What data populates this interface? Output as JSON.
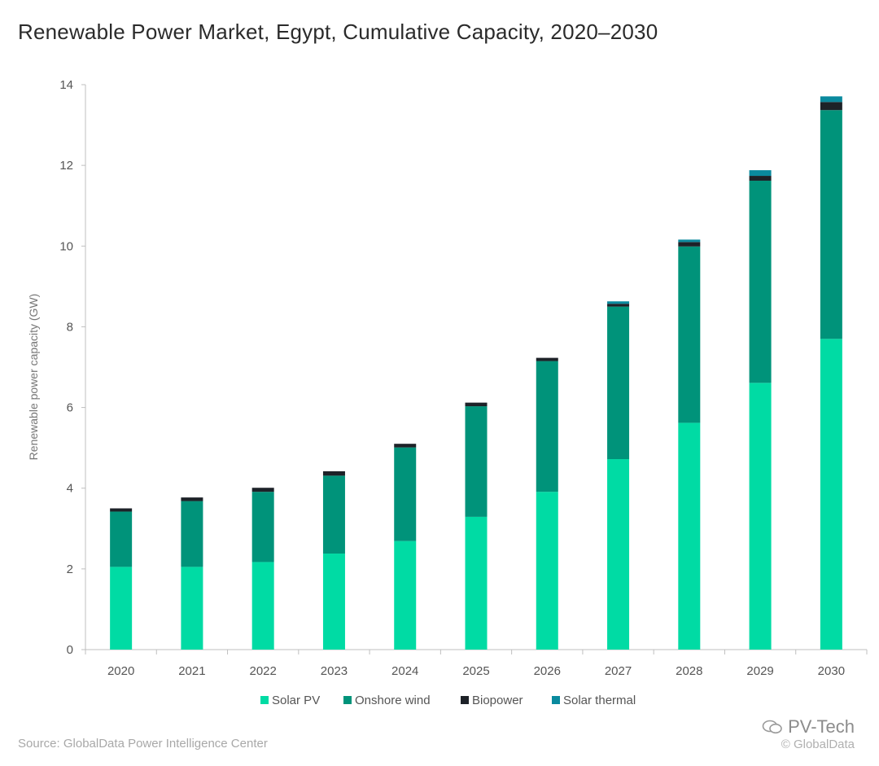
{
  "chart_data": {
    "type": "bar",
    "stacked": true,
    "title": "Renewable Power Market, Egypt, Cumulative Capacity, 2020–2030",
    "xlabel": "",
    "ylabel": "Renewable power capacity (GW)",
    "ylim": [
      0,
      14
    ],
    "yticks": [
      0,
      2,
      4,
      6,
      8,
      10,
      12,
      14
    ],
    "grid": false,
    "legend_position": "bottom",
    "categories": [
      "2020",
      "2021",
      "2022",
      "2023",
      "2024",
      "2025",
      "2026",
      "2027",
      "2028",
      "2029",
      "2030"
    ],
    "series": [
      {
        "name": "Solar PV",
        "color": "#00dba4",
        "values": [
          2.05,
          2.05,
          2.17,
          2.38,
          2.69,
          3.29,
          3.91,
          4.72,
          5.62,
          6.61,
          7.7
        ]
      },
      {
        "name": "Onshore wind",
        "color": "#00937a",
        "values": [
          1.37,
          1.63,
          1.74,
          1.93,
          2.32,
          2.74,
          3.24,
          3.78,
          4.37,
          5.01,
          5.67
        ]
      },
      {
        "name": "Biopower",
        "color": "#1d2228",
        "values": [
          0.08,
          0.09,
          0.1,
          0.11,
          0.09,
          0.09,
          0.08,
          0.07,
          0.11,
          0.12,
          0.2
        ]
      },
      {
        "name": "Solar thermal",
        "color": "#0a8a9e",
        "values": [
          0.0,
          0.0,
          0.0,
          0.0,
          0.0,
          0.0,
          0.0,
          0.06,
          0.06,
          0.14,
          0.14
        ]
      }
    ]
  },
  "source": "Source: GlobalData Power Intelligence Center",
  "watermark": {
    "brand": "PV-Tech",
    "copyright": "© GlobalData"
  }
}
